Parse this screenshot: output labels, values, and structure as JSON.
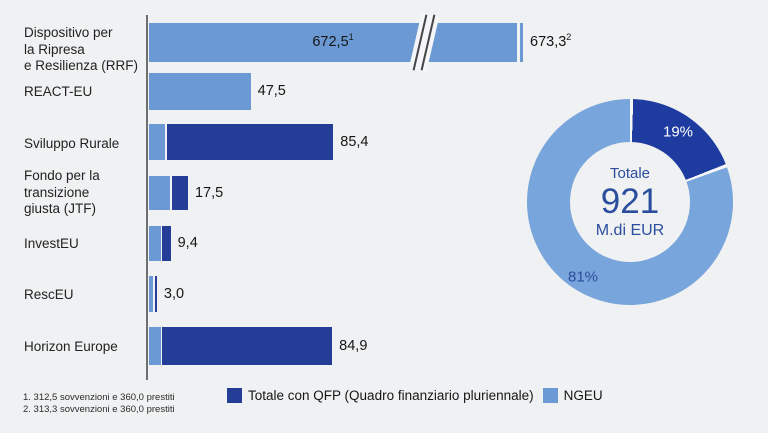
{
  "colors": {
    "background": "#f0f1f2",
    "bar_light": "#6b99d3",
    "bar_dark": "#243e97",
    "donut_light": "#78a5db",
    "donut_dark": "#1e3ca0",
    "axis": "#6f6f6f",
    "gap_white": "#f5f6f8",
    "text": "#1f1f1f",
    "accent_blue": "#2b4d9e"
  },
  "chart_data": [
    {
      "type": "bar",
      "orientation": "horizontal",
      "unit": "M.di EUR",
      "legend": [
        "Totale con QFP (Quadro finanziario pluriennale)",
        "NGEU"
      ],
      "bars": [
        {
          "label_lines": [
            "Dispositivo per",
            "la Ripresa",
            "e Resilienza (RRF)"
          ],
          "value": 672.5,
          "value_label": "672,5",
          "footnote": "1",
          "ngeu": 672.5,
          "qfp": 0,
          "axis_break": true,
          "value_after_break": 673.3,
          "value_label_2": "673,3",
          "footnote_2": "2"
        },
        {
          "label_lines": [
            "REACT-EU"
          ],
          "value": 47.5,
          "value_label": "47,5",
          "ngeu": 47.5,
          "qfp": 0
        },
        {
          "label_lines": [
            "Sviluppo Rurale"
          ],
          "value": 85.4,
          "value_label": "85,4",
          "ngeu": 7.5,
          "qfp": 77.9
        },
        {
          "label_lines": [
            "Fondo per la",
            "transizione",
            "giusta (JTF)"
          ],
          "value": 17.5,
          "value_label": "17,5",
          "ngeu": 10.0,
          "qfp": 7.5
        },
        {
          "label_lines": [
            "InvestEU"
          ],
          "value": 9.4,
          "value_label": "9,4",
          "ngeu": 5.6,
          "qfp": 3.8
        },
        {
          "label_lines": [
            "RescEU"
          ],
          "value": 3.0,
          "value_label": "3,0",
          "ngeu": 1.9,
          "qfp": 1.1
        },
        {
          "label_lines": [
            "Horizon Europe"
          ],
          "value": 84.9,
          "value_label": "84,9",
          "ngeu": 5.4,
          "qfp": 79.5
        }
      ]
    },
    {
      "type": "pie",
      "donut": true,
      "slices": [
        {
          "label": "Totale con QFP (Quadro finanziario pluriennale)",
          "pct": 19,
          "pct_label": "19%"
        },
        {
          "label": "NGEU",
          "pct": 81,
          "pct_label": "81%"
        }
      ],
      "center_text": {
        "line1": "Totale",
        "line2": "921",
        "line3": "M.di EUR"
      }
    }
  ],
  "legend": {
    "items": [
      {
        "label": "Totale con QFP (Quadro finanziario pluriennale)"
      },
      {
        "label": "NGEU"
      }
    ]
  },
  "footnotes": [
    "1. 312,5 sovvenzioni e 360,0 prestiti",
    "2. 313,3 sovvenzioni e 360,0 prestiti"
  ]
}
